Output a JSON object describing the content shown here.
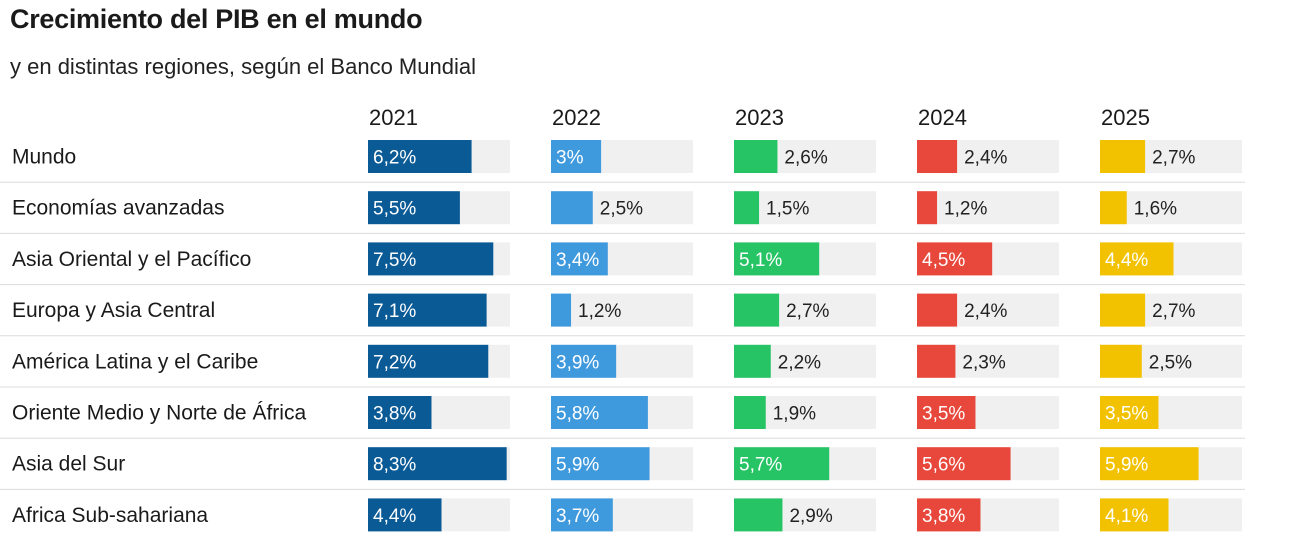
{
  "chart_data": {
    "type": "bar",
    "title": "Crecimiento del PIB en el mundo",
    "subtitle": "y en distintas regiones, según el Banco Mundial",
    "columns": [
      "2021",
      "2022",
      "2023",
      "2024",
      "2025"
    ],
    "categories": [
      "Mundo",
      "Economías avanzadas",
      "Asia Oriental y el Pacífico",
      "Europa y Asia Central",
      "América Latina y el Caribe",
      "Oriente Medio y Norte de África",
      "Asia del Sur",
      "Africa Sub-sahariana"
    ],
    "series": [
      {
        "name": "2021",
        "color": "#0a5a96",
        "values": [
          6.2,
          5.5,
          7.5,
          7.1,
          7.2,
          3.8,
          8.3,
          4.4
        ],
        "labels": [
          "6,2%",
          "5,5%",
          "7,5%",
          "7,1%",
          "7,2%",
          "3,8%",
          "8,3%",
          "4,4%"
        ]
      },
      {
        "name": "2022",
        "color": "#3f99dd",
        "values": [
          3.0,
          2.5,
          3.4,
          1.2,
          3.9,
          5.8,
          5.9,
          3.7
        ],
        "labels": [
          "3%",
          "2,5%",
          "3,4%",
          "1,2%",
          "3,9%",
          "5,8%",
          "5,9%",
          "3,7%"
        ]
      },
      {
        "name": "2023",
        "color": "#27c465",
        "values": [
          2.6,
          1.5,
          5.1,
          2.7,
          2.2,
          1.9,
          5.7,
          2.9
        ],
        "labels": [
          "2,6%",
          "1,5%",
          "5,1%",
          "2,7%",
          "2,2%",
          "1,9%",
          "5,7%",
          "2,9%"
        ]
      },
      {
        "name": "2024",
        "color": "#e8473b",
        "values": [
          2.4,
          1.2,
          4.5,
          2.4,
          2.3,
          3.5,
          5.6,
          3.8
        ],
        "labels": [
          "2,4%",
          "1,2%",
          "4,5%",
          "2,4%",
          "2,3%",
          "3,5%",
          "5,6%",
          "3,8%"
        ]
      },
      {
        "name": "2025",
        "color": "#f2c200",
        "values": [
          2.7,
          1.6,
          4.4,
          2.7,
          2.5,
          3.5,
          5.9,
          4.1
        ],
        "labels": [
          "2,7%",
          "1,6%",
          "4,4%",
          "2,7%",
          "2,5%",
          "3,5%",
          "5,9%",
          "4,1%"
        ]
      }
    ],
    "xlim": [
      0,
      8.5
    ],
    "track_color": "#f0f0f0",
    "separator_color": "#dcdcdc",
    "inside_label_color": "#ffffff",
    "outside_label_color": "#222222"
  }
}
